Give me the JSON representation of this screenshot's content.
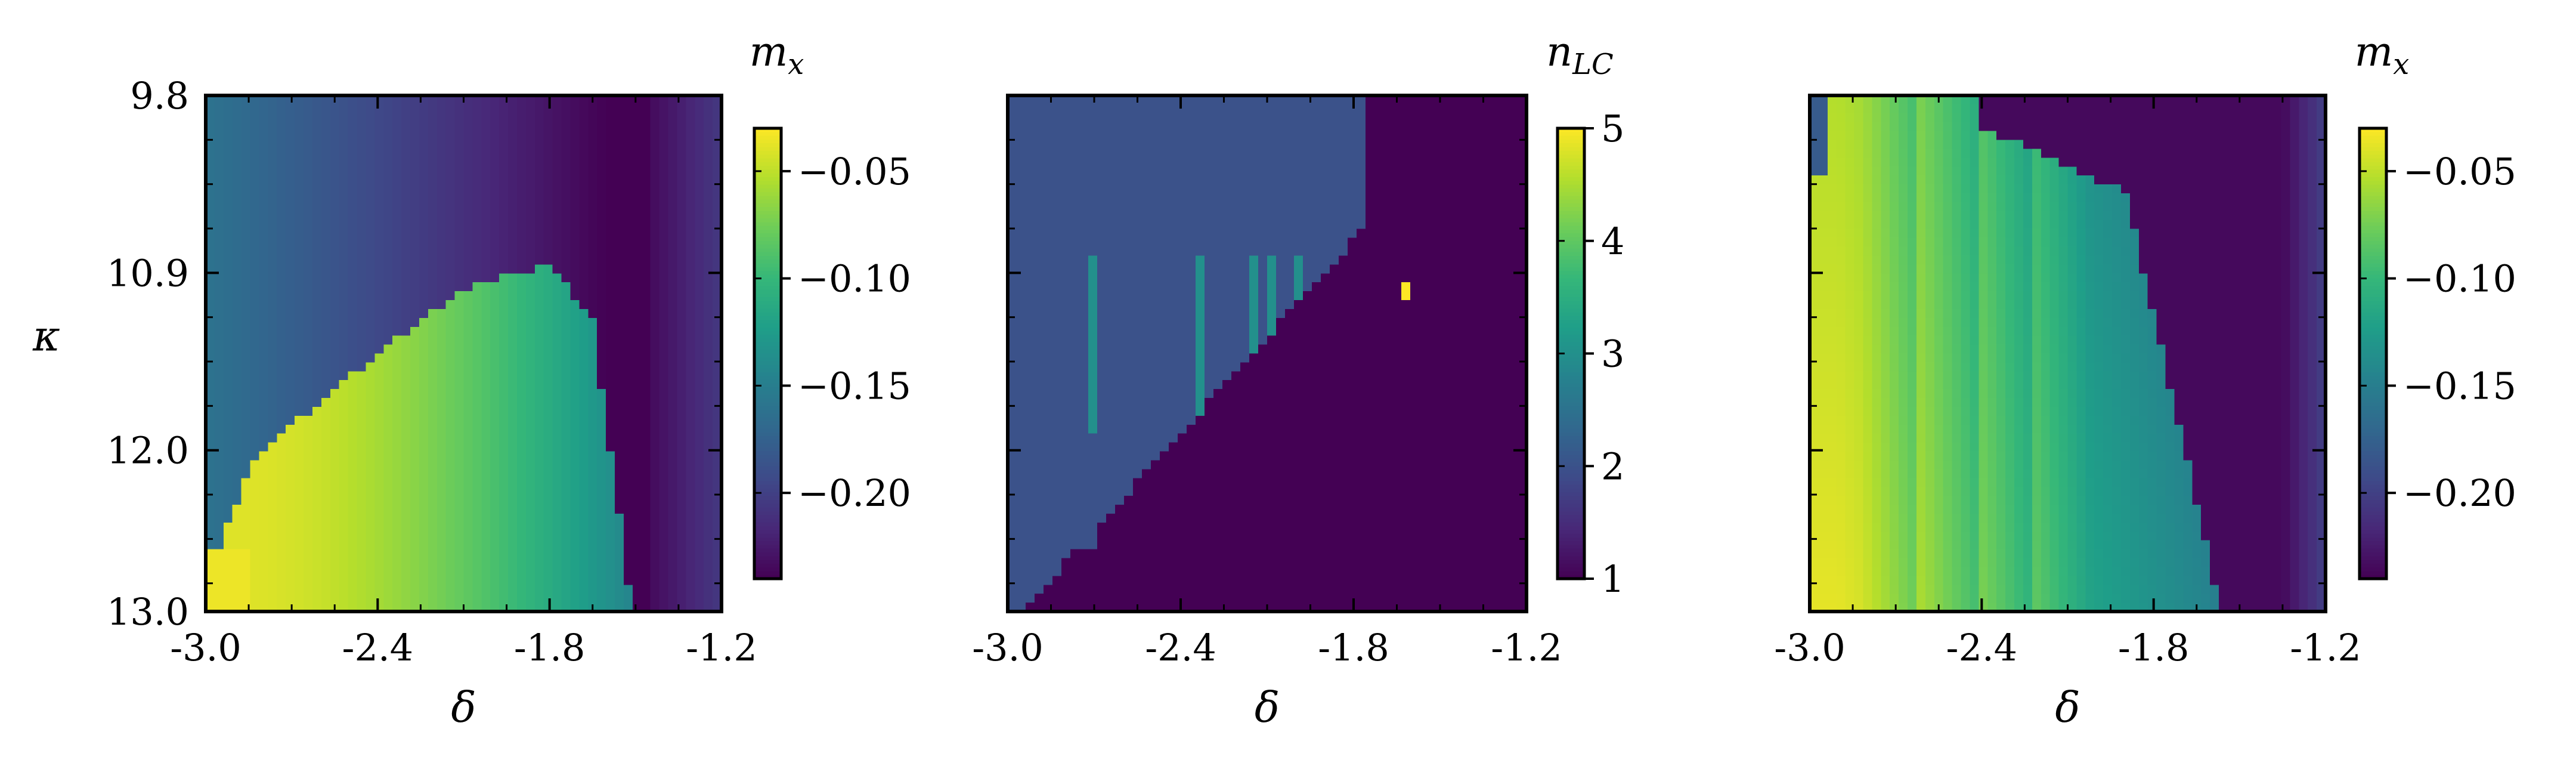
{
  "chart_data": [
    {
      "type": "heatmap",
      "title": "",
      "xlabel": "δ",
      "ylabel": "κ",
      "xlim": [
        -3.0,
        -1.2
      ],
      "ylim": [
        9.8,
        13.0
      ],
      "y_inverted": true,
      "x_ticks": [
        "-3.0",
        "-2.4",
        "-1.8",
        "-1.2"
      ],
      "x_tick_values": [
        -3.0,
        -2.4,
        -1.8,
        -1.2
      ],
      "y_ticks": [
        "9.8",
        "10.9",
        "12.0",
        "13.0"
      ],
      "y_tick_values": [
        9.8,
        10.9,
        12.0,
        13.0
      ],
      "colorbar": {
        "label": "m_x",
        "label_tex": "m",
        "label_sub": "x",
        "range": [
          -0.24,
          -0.03
        ],
        "ticks": [
          -0.05,
          -0.1,
          -0.15,
          -0.2
        ],
        "tick_labels": [
          "−0.05",
          "−0.10",
          "−0.15",
          "−0.20"
        ]
      },
      "colormap": "viridis",
      "field": "mx_original"
    },
    {
      "type": "heatmap",
      "title": "",
      "xlabel": "δ",
      "ylabel": "",
      "xlim": [
        -3.0,
        -1.2
      ],
      "ylim": [
        9.8,
        13.0
      ],
      "y_inverted": true,
      "x_ticks": [
        "-3.0",
        "-2.4",
        "-1.8",
        "-1.2"
      ],
      "x_tick_values": [
        -3.0,
        -2.4,
        -1.8,
        -1.2
      ],
      "colorbar": {
        "label": "n_LC",
        "label_tex": "n",
        "label_sub": "LC",
        "range": [
          1,
          5
        ],
        "ticks": [
          1,
          2,
          3,
          4,
          5
        ],
        "tick_labels": [
          "1",
          "2",
          "3",
          "4",
          "5"
        ]
      },
      "colormap": "viridis",
      "field": "nLC"
    },
    {
      "type": "heatmap",
      "title": "",
      "xlabel": "δ",
      "ylabel": "",
      "xlim": [
        -3.0,
        -1.2
      ],
      "ylim": [
        9.8,
        13.0
      ],
      "y_inverted": true,
      "x_ticks": [
        "-3.0",
        "-2.4",
        "-1.8",
        "-1.2"
      ],
      "x_tick_values": [
        -3.0,
        -2.4,
        -1.8,
        -1.2
      ],
      "colorbar": {
        "label": "m_x",
        "label_tex": "m",
        "label_sub": "x",
        "range": [
          -0.24,
          -0.03
        ],
        "ticks": [
          -0.05,
          -0.1,
          -0.15,
          -0.2
        ],
        "tick_labels": [
          "−0.05",
          "−0.10",
          "−0.15",
          "−0.20"
        ]
      },
      "colormap": "viridis",
      "field": "mx_continued"
    }
  ]
}
